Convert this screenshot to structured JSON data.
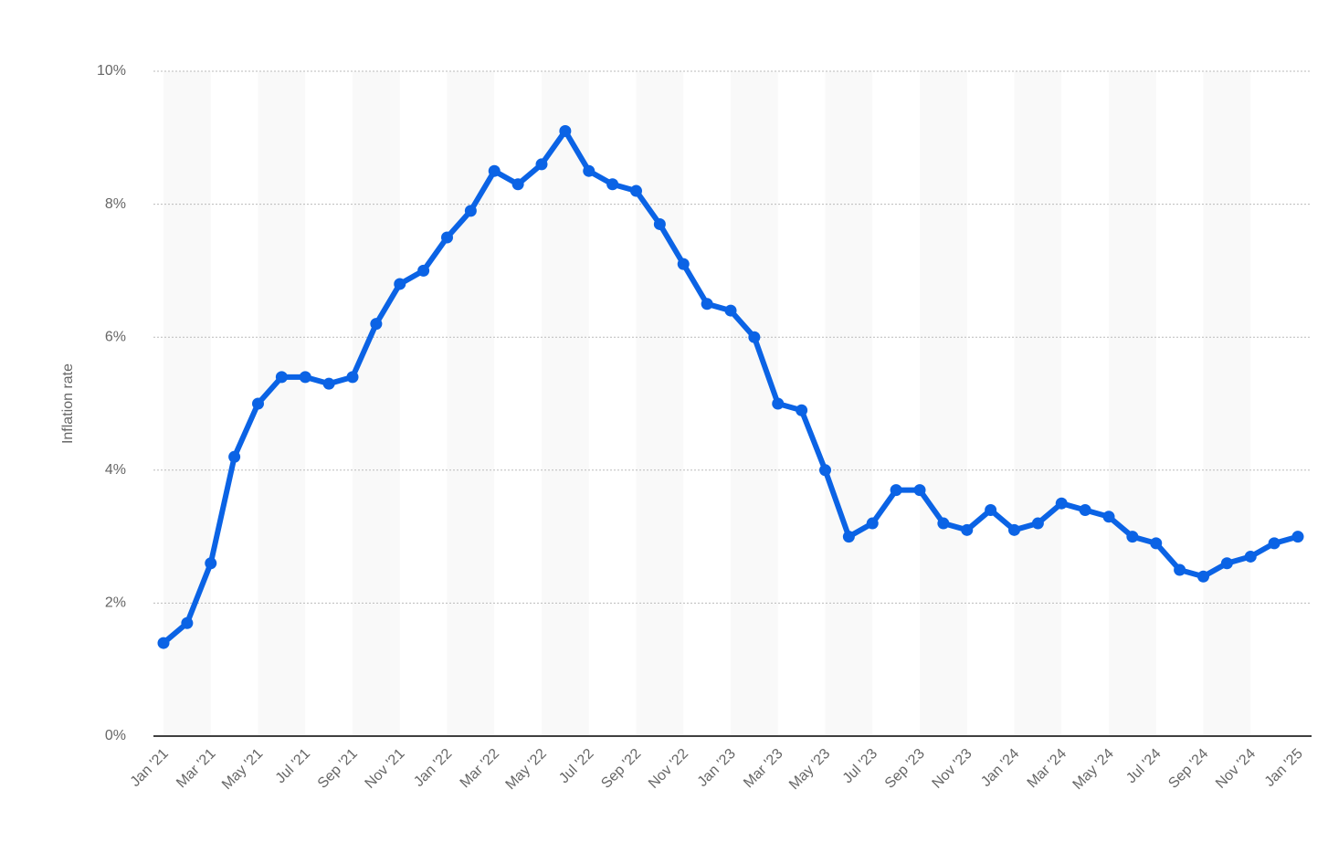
{
  "chart_data": {
    "type": "line",
    "y_label": "Inflation rate",
    "categories": [
      "Jan '21",
      null,
      "Mar '21",
      null,
      "May '21",
      null,
      "Jul '21",
      null,
      "Sep '21",
      null,
      "Nov '21",
      null,
      "Jan '22",
      null,
      "Mar '22",
      null,
      "May '22",
      null,
      "Jul '22",
      null,
      "Sep '22",
      null,
      "Nov '22",
      null,
      "Jan '23",
      null,
      "Mar '23",
      null,
      "May '23",
      null,
      "Jul '23",
      null,
      "Sep '23",
      null,
      "Nov '23",
      null,
      "Jan '24",
      null,
      "Mar '24",
      null,
      "May '24",
      null,
      "Jul '24",
      null,
      "Sep '24",
      null,
      "Nov '24",
      null,
      "Jan '25"
    ],
    "series": [
      {
        "color": "#0b63e5",
        "values": [
          1.4,
          1.7,
          2.6,
          4.2,
          5.0,
          5.4,
          5.4,
          5.3,
          5.4,
          6.2,
          6.8,
          7.0,
          7.5,
          7.9,
          8.5,
          8.3,
          8.6,
          9.1,
          8.5,
          8.3,
          8.2,
          7.7,
          7.1,
          6.5,
          6.4,
          6.0,
          5.0,
          4.9,
          4.0,
          3.0,
          3.2,
          3.7,
          3.7,
          3.2,
          3.1,
          3.4,
          3.1,
          3.2,
          3.5,
          3.4,
          3.3,
          3.0,
          2.9,
          2.5,
          2.4,
          2.6,
          2.7,
          2.9,
          3.0
        ]
      }
    ],
    "ylim": [
      0,
      10
    ],
    "yticks": [
      {
        "value": 0,
        "label": "0%"
      },
      {
        "value": 2,
        "label": "2%"
      },
      {
        "value": 4,
        "label": "4%"
      },
      {
        "value": 6,
        "label": "6%"
      },
      {
        "value": 8,
        "label": "8%"
      },
      {
        "value": 10,
        "label": "10%"
      }
    ],
    "grid": true
  }
}
